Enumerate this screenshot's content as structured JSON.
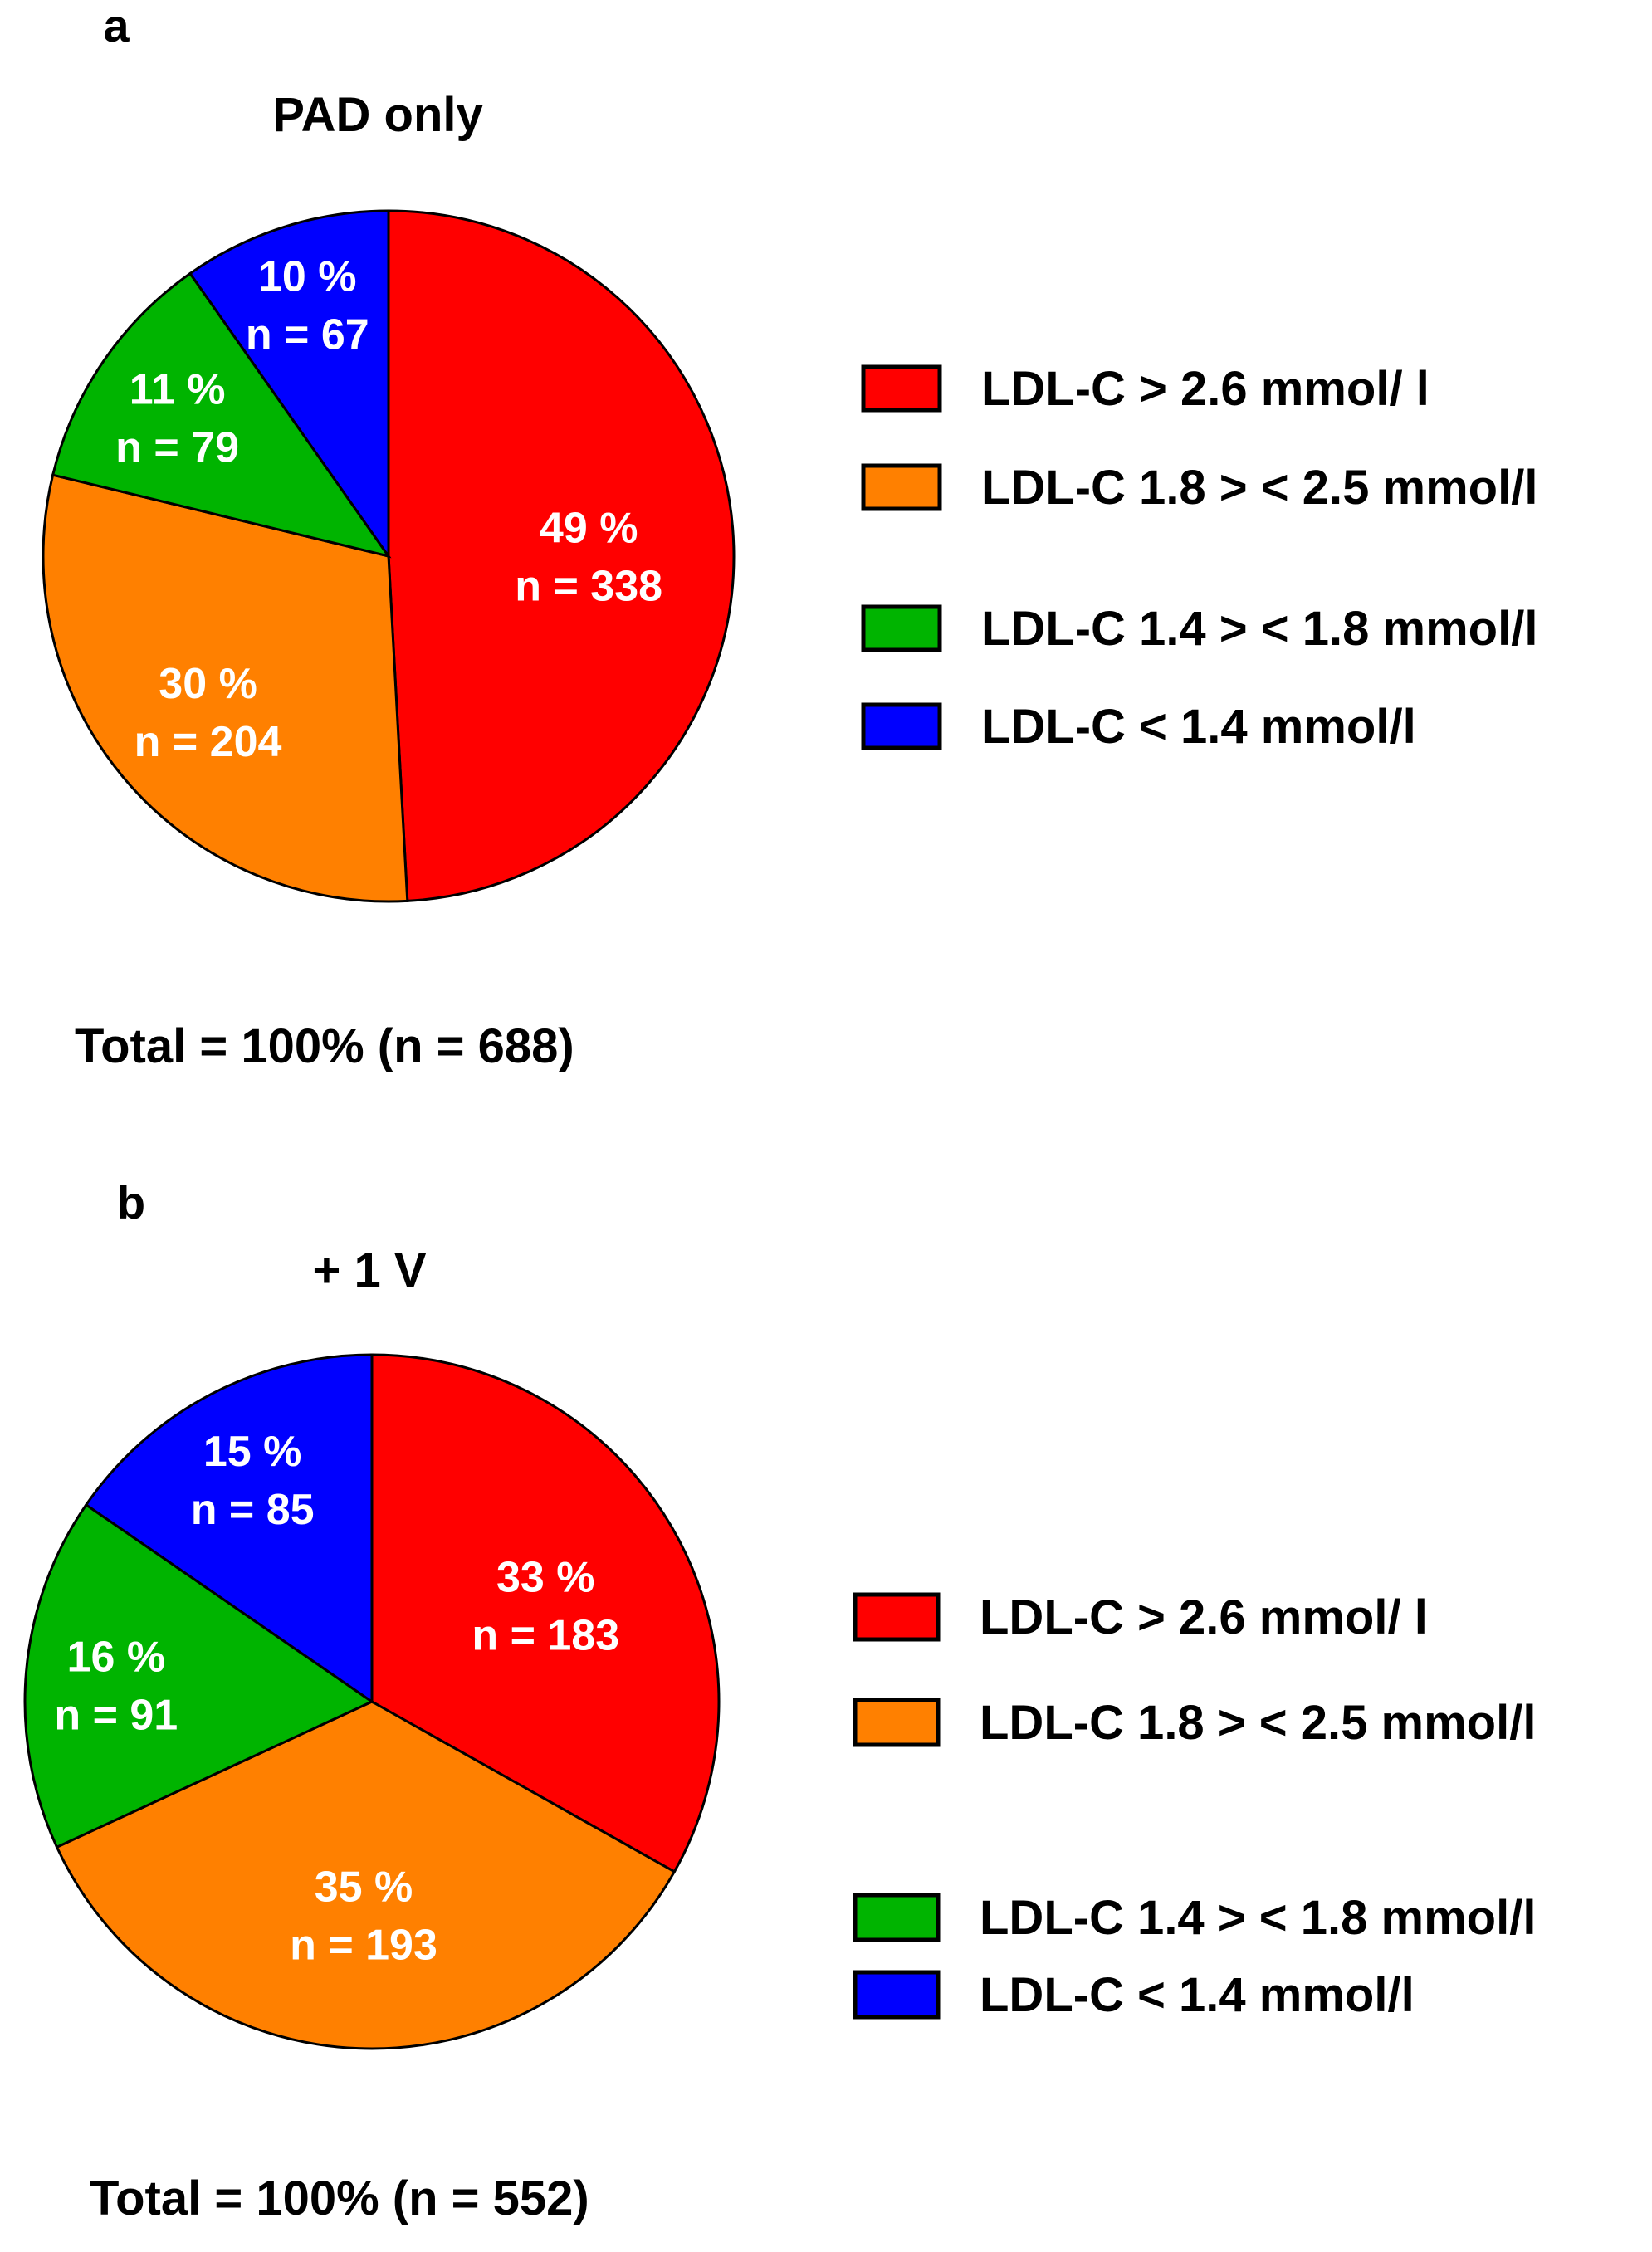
{
  "chart_data": [
    {
      "type": "pie",
      "panel_label": "a",
      "title": "PAD only",
      "total_text": "Total = 100%  (n = 688)",
      "slices": [
        {
          "label": "LDL-C > 2.6 mmol/ l",
          "percent_text": "49 %",
          "n_text": "n = 338",
          "value": 338,
          "color": "#ff0000"
        },
        {
          "label": "LDL-C 1.8 > < 2.5 mmol/l",
          "percent_text": "30 %",
          "n_text": "n = 204",
          "value": 204,
          "color": "#ff8000"
        },
        {
          "label": "LDL-C 1.4 > < 1.8 mmol/l",
          "percent_text": "11 %",
          "n_text": "n = 79",
          "value": 79,
          "color": "#00b400"
        },
        {
          "label": "LDL-C < 1.4 mmol/l",
          "percent_text": "10 %",
          "n_text": "n = 67",
          "value": 67,
          "color": "#0000ff"
        }
      ]
    },
    {
      "type": "pie",
      "panel_label": "b",
      "title": "+ 1 V",
      "total_text": "Total = 100%  (n = 552)",
      "slices": [
        {
          "label": "LDL-C > 2.6 mmol/ l",
          "percent_text": "33 %",
          "n_text": "n = 183",
          "value": 183,
          "color": "#ff0000"
        },
        {
          "label": "LDL-C 1.8 > < 2.5 mmol/l",
          "percent_text": "35 %",
          "n_text": "n = 193",
          "value": 193,
          "color": "#ff8000"
        },
        {
          "label": "LDL-C 1.4 > < 1.8 mmol/l",
          "percent_text": "16 %",
          "n_text": "n = 91",
          "value": 91,
          "color": "#00b400"
        },
        {
          "label": "LDL-C < 1.4 mmol/l",
          "percent_text": "15 %",
          "n_text": "n = 85",
          "value": 85,
          "color": "#0000ff"
        }
      ]
    }
  ]
}
